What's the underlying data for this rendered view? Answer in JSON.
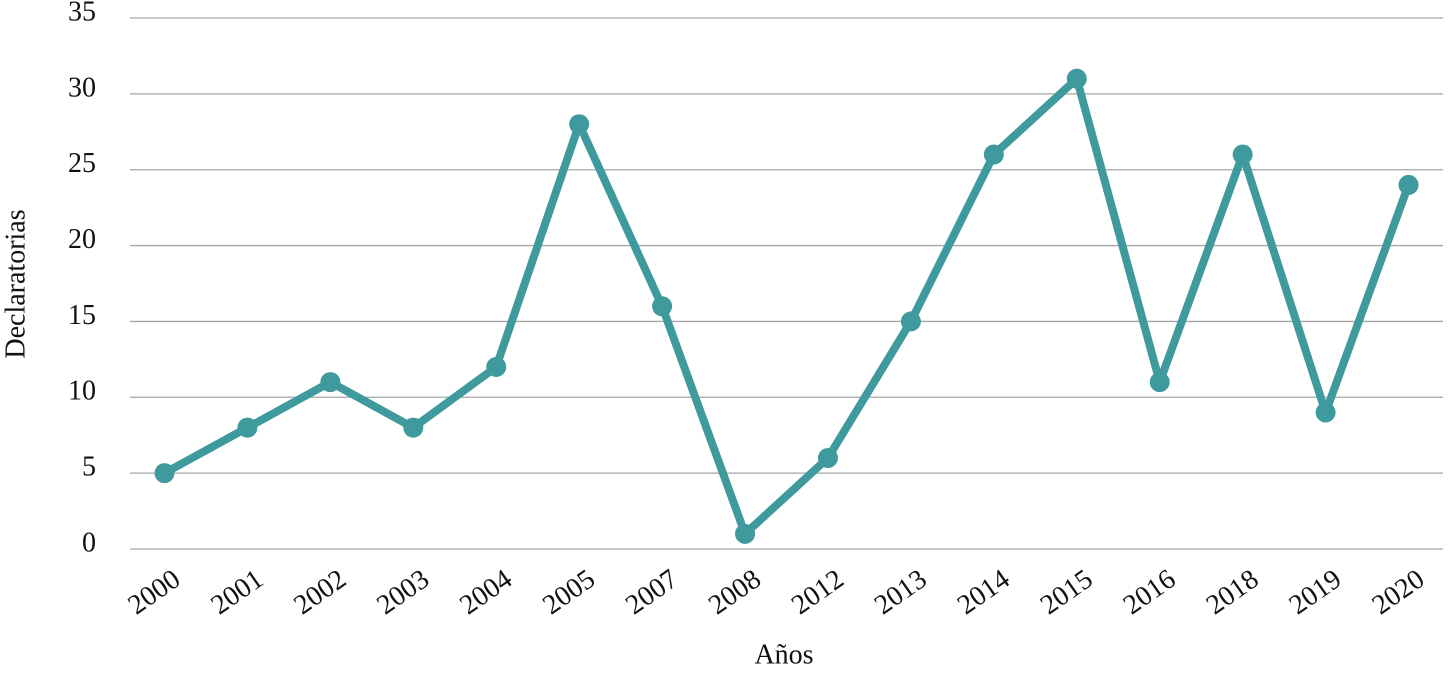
{
  "chart_data": {
    "type": "line",
    "x_label": "Años",
    "y_label": "Declaratorias",
    "categories": [
      "2000",
      "2001",
      "2002",
      "2003",
      "2004",
      "2005",
      "2007",
      "2008",
      "2012",
      "2013",
      "2014",
      "2015",
      "2016",
      "2018",
      "2019",
      "2020"
    ],
    "values": [
      5,
      8,
      11,
      8,
      12,
      28,
      16,
      1,
      6,
      15,
      26,
      31,
      11,
      26,
      9,
      24
    ],
    "color": "#3e9a9c",
    "ylim": [
      0,
      35
    ],
    "yticks": [
      0,
      5,
      10,
      15,
      20,
      25,
      30,
      35
    ],
    "grid": true
  }
}
